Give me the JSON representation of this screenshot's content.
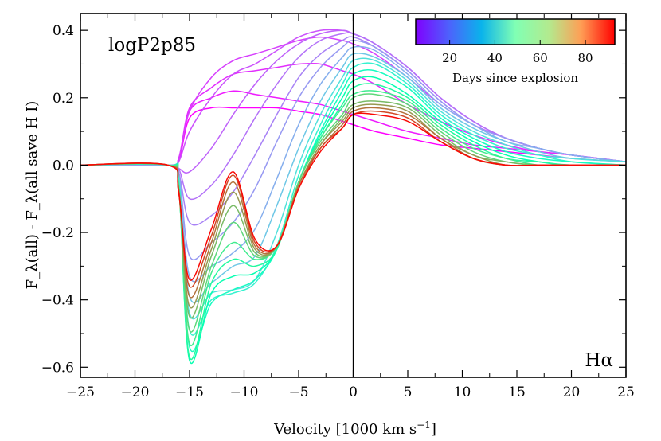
{
  "chart_data": {
    "type": "line",
    "title": "",
    "panel_label": "logP2p85",
    "line_label": "Hα",
    "xlabel": "Velocity [1000 km s",
    "xlabel_sup": "−1",
    "xlabel_close": "]",
    "ylabel": "F_λ(all) - F_λ(all save H I)",
    "xlim": [
      -25,
      25
    ],
    "ylim": [
      -0.63,
      0.45
    ],
    "x_ticks": [
      -25,
      -20,
      -15,
      -10,
      -5,
      0,
      5,
      10,
      15,
      20,
      25
    ],
    "x_tick_labels": [
      "−25",
      "−20",
      "−15",
      "−10",
      "−5",
      "0",
      "5",
      "10",
      "15",
      "20",
      "25"
    ],
    "y_ticks": [
      -0.6,
      -0.4,
      -0.2,
      0.0,
      0.2,
      0.4
    ],
    "y_tick_labels": [
      "−0.6",
      "−0.4",
      "−0.2",
      "0.0",
      "0.2",
      "0.4"
    ],
    "colorbar": {
      "label": "Days since explosion",
      "range": [
        5,
        93
      ],
      "ticks": [
        20,
        40,
        60,
        80
      ],
      "tick_labels": [
        "20",
        "40",
        "60",
        "80"
      ],
      "colormap": "rainbow"
    },
    "vertical_line_x": 0,
    "series": [
      {
        "name": "Day 5",
        "day": 5,
        "x": [
          -25,
          -17,
          -16,
          -15,
          -13,
          -11,
          -9,
          -7,
          -5,
          -3,
          -1,
          0,
          2,
          5,
          8,
          11,
          14,
          17,
          20,
          25
        ],
        "y": [
          0,
          0,
          0.01,
          0.14,
          0.17,
          0.17,
          0.17,
          0.17,
          0.16,
          0.15,
          0.13,
          0.12,
          0.1,
          0.08,
          0.06,
          0.05,
          0.04,
          0.03,
          0.02,
          0.01
        ]
      },
      {
        "name": "Day 8",
        "day": 8,
        "x": [
          -25,
          -17,
          -16,
          -15,
          -13,
          -11,
          -9,
          -7,
          -5,
          -3,
          -1,
          0,
          2,
          5,
          8,
          11,
          14,
          17,
          20,
          25
        ],
        "y": [
          0,
          0,
          0.01,
          0.16,
          0.2,
          0.22,
          0.21,
          0.2,
          0.19,
          0.18,
          0.16,
          0.15,
          0.13,
          0.1,
          0.08,
          0.06,
          0.05,
          0.04,
          0.03,
          0.01
        ]
      },
      {
        "name": "Day 10",
        "day": 10,
        "x": [
          -25,
          -17,
          -16,
          -15,
          -13,
          -11,
          -9,
          -7,
          -5,
          -3,
          -1,
          0,
          2,
          5,
          8,
          11,
          14,
          17,
          20,
          25
        ],
        "y": [
          0,
          0,
          0.02,
          0.17,
          0.23,
          0.27,
          0.28,
          0.29,
          0.3,
          0.3,
          0.28,
          0.27,
          0.24,
          0.18,
          0.13,
          0.09,
          0.06,
          0.04,
          0.03,
          0.01
        ]
      },
      {
        "name": "Day 12",
        "day": 12,
        "x": [
          -25,
          -17,
          -16,
          -15,
          -13,
          -11,
          -9,
          -7,
          -5,
          -3,
          -1,
          0,
          2,
          5,
          8,
          11,
          14,
          17,
          20,
          25
        ],
        "y": [
          0,
          0,
          0.02,
          0.16,
          0.26,
          0.31,
          0.33,
          0.35,
          0.37,
          0.38,
          0.37,
          0.36,
          0.33,
          0.26,
          0.18,
          0.12,
          0.08,
          0.05,
          0.03,
          0.01
        ]
      },
      {
        "name": "Day 14",
        "day": 14,
        "x": [
          -25,
          -17,
          -16,
          -15,
          -13,
          -11,
          -9,
          -7,
          -5,
          -3,
          -1,
          0,
          2,
          5,
          8,
          11,
          14,
          17,
          20,
          25
        ],
        "y": [
          0,
          0,
          0.01,
          0.1,
          0.2,
          0.27,
          0.3,
          0.34,
          0.38,
          0.4,
          0.4,
          0.39,
          0.36,
          0.29,
          0.2,
          0.13,
          0.08,
          0.05,
          0.03,
          0.01
        ]
      },
      {
        "name": "Day 16",
        "day": 16,
        "x": [
          -25,
          -17,
          -16,
          -15,
          -13,
          -11,
          -9,
          -7,
          -5,
          -3,
          -1,
          0,
          2,
          5,
          8,
          11,
          14,
          17,
          20,
          25
        ],
        "y": [
          0,
          0,
          -0.01,
          -0.02,
          0.05,
          0.15,
          0.24,
          0.31,
          0.36,
          0.39,
          0.4,
          0.39,
          0.36,
          0.29,
          0.2,
          0.13,
          0.08,
          0.05,
          0.03,
          0.01
        ]
      },
      {
        "name": "Day 18",
        "day": 18,
        "x": [
          -25,
          -17,
          -16,
          -15,
          -13,
          -11,
          -9,
          -7,
          -5,
          -3,
          -1,
          0,
          2,
          5,
          8,
          11,
          14,
          17,
          20,
          25
        ],
        "y": [
          0,
          0,
          -0.01,
          -0.1,
          -0.06,
          0.03,
          0.14,
          0.24,
          0.32,
          0.37,
          0.39,
          0.39,
          0.36,
          0.29,
          0.2,
          0.13,
          0.08,
          0.05,
          0.03,
          0.01
        ]
      },
      {
        "name": "Day 20",
        "day": 20,
        "x": [
          -25,
          -17,
          -16,
          -15,
          -13,
          -11,
          -9,
          -7,
          -5,
          -3,
          -1,
          0,
          2,
          5,
          8,
          11,
          14,
          17,
          20,
          25
        ],
        "y": [
          0,
          0,
          -0.02,
          -0.17,
          -0.15,
          -0.08,
          0.03,
          0.15,
          0.26,
          0.33,
          0.37,
          0.38,
          0.35,
          0.28,
          0.19,
          0.12,
          0.08,
          0.05,
          0.03,
          0.01
        ]
      },
      {
        "name": "Day 23",
        "day": 23,
        "x": [
          -25,
          -17,
          -16,
          -15,
          -13,
          -11,
          -9,
          -7,
          -5,
          -3,
          -1,
          0,
          2,
          5,
          8,
          11,
          14,
          17,
          20,
          25
        ],
        "y": [
          0,
          0,
          -0.02,
          -0.27,
          -0.23,
          -0.17,
          -0.07,
          0.07,
          0.2,
          0.29,
          0.35,
          0.37,
          0.35,
          0.28,
          0.19,
          0.12,
          0.08,
          0.05,
          0.03,
          0.01
        ]
      },
      {
        "name": "Day 26",
        "day": 26,
        "x": [
          -25,
          -17,
          -16,
          -15,
          -13,
          -11,
          -9,
          -7,
          -5,
          -3,
          -1,
          0,
          2,
          5,
          8,
          11,
          14,
          17,
          20,
          25
        ],
        "y": [
          0,
          0,
          -0.03,
          -0.33,
          -0.3,
          -0.26,
          -0.19,
          -0.04,
          0.12,
          0.24,
          0.32,
          0.35,
          0.34,
          0.27,
          0.18,
          0.12,
          0.07,
          0.05,
          0.03,
          0.01
        ]
      },
      {
        "name": "Day 30",
        "day": 30,
        "x": [
          -25,
          -17,
          -16,
          -15,
          -13,
          -11,
          -9,
          -7,
          -5,
          -3,
          -1,
          0,
          2,
          5,
          8,
          11,
          14,
          17,
          20,
          25
        ],
        "y": [
          0,
          0,
          -0.03,
          -0.39,
          -0.35,
          -0.3,
          -0.27,
          -0.12,
          0.05,
          0.19,
          0.29,
          0.33,
          0.32,
          0.26,
          0.17,
          0.11,
          0.07,
          0.04,
          0.02,
          0.01
        ]
      },
      {
        "name": "Day 35",
        "day": 35,
        "x": [
          -25,
          -17,
          -16,
          -15,
          -13,
          -11,
          -9,
          -7,
          -5,
          -3,
          -1,
          0,
          2,
          5,
          8,
          11,
          14,
          17,
          20,
          25
        ],
        "y": [
          0,
          0,
          -0.04,
          -0.44,
          -0.38,
          -0.37,
          -0.34,
          -0.2,
          0,
          0.15,
          0.26,
          0.31,
          0.31,
          0.25,
          0.16,
          0.1,
          0.06,
          0.03,
          0.02,
          0.01
        ]
      },
      {
        "name": "Day 40",
        "day": 40,
        "x": [
          -25,
          -17,
          -16,
          -15,
          -13,
          -11,
          -9,
          -7,
          -5,
          -3,
          -1,
          0,
          2,
          5,
          8,
          11,
          14,
          17,
          20,
          25
        ],
        "y": [
          0,
          0,
          -0.05,
          -0.49,
          -0.4,
          -0.38,
          -0.35,
          -0.24,
          -0.03,
          0.12,
          0.24,
          0.29,
          0.3,
          0.24,
          0.15,
          0.09,
          0.05,
          0.03,
          0.01,
          0
        ]
      },
      {
        "name": "Day 45",
        "day": 45,
        "x": [
          -25,
          -17,
          -16,
          -15,
          -13,
          -11,
          -9,
          -7,
          -5,
          -3,
          -1,
          0,
          2,
          5,
          8,
          11,
          14,
          17,
          20,
          25
        ],
        "y": [
          0,
          0,
          -0.05,
          -0.54,
          -0.41,
          -0.37,
          -0.34,
          -0.25,
          -0.05,
          0.1,
          0.22,
          0.27,
          0.28,
          0.23,
          0.14,
          0.08,
          0.04,
          0.02,
          0.01,
          0
        ]
      },
      {
        "name": "Day 50",
        "day": 50,
        "x": [
          -25,
          -17,
          -16,
          -15,
          -13,
          -11,
          -9,
          -7,
          -5,
          -3,
          -1,
          0,
          2,
          5,
          8,
          11,
          14,
          17,
          20,
          25
        ],
        "y": [
          0,
          0,
          -0.06,
          -0.58,
          -0.38,
          -0.33,
          -0.32,
          -0.25,
          -0.05,
          0.09,
          0.2,
          0.25,
          0.26,
          0.21,
          0.13,
          0.07,
          0.03,
          0.01,
          0,
          0
        ]
      },
      {
        "name": "Day 55",
        "day": 55,
        "x": [
          -25,
          -17,
          -16,
          -15,
          -13,
          -11,
          -9,
          -7,
          -5,
          -3,
          -1,
          0,
          2,
          5,
          8,
          11,
          14,
          17,
          20,
          25
        ],
        "y": [
          0,
          0,
          -0.06,
          -0.57,
          -0.35,
          -0.28,
          -0.3,
          -0.25,
          -0.05,
          0.08,
          0.18,
          0.23,
          0.24,
          0.2,
          0.12,
          0.06,
          0.02,
          0.01,
          0,
          0
        ]
      },
      {
        "name": "Day 60",
        "day": 60,
        "x": [
          -25,
          -17,
          -16,
          -15,
          -13,
          -11,
          -9,
          -7,
          -5,
          -3,
          -1,
          0,
          2,
          5,
          8,
          11,
          14,
          17,
          20,
          25
        ],
        "y": [
          0,
          0,
          -0.06,
          -0.53,
          -0.32,
          -0.23,
          -0.28,
          -0.24,
          -0.05,
          0.08,
          0.17,
          0.21,
          0.22,
          0.19,
          0.11,
          0.05,
          0.02,
          0,
          0,
          0
        ]
      },
      {
        "name": "Day 65",
        "day": 65,
        "x": [
          -25,
          -17,
          -16,
          -15,
          -13,
          -11,
          -9,
          -7,
          -5,
          -3,
          -1,
          0,
          2,
          5,
          8,
          11,
          14,
          17,
          20,
          25
        ],
        "y": [
          0,
          0,
          -0.07,
          -0.49,
          -0.3,
          -0.17,
          -0.27,
          -0.24,
          -0.05,
          0.07,
          0.15,
          0.2,
          0.21,
          0.18,
          0.1,
          0.04,
          0.01,
          0,
          0,
          0
        ]
      },
      {
        "name": "Day 70",
        "day": 70,
        "x": [
          -25,
          -17,
          -16,
          -15,
          -13,
          -11,
          -9,
          -7,
          -5,
          -3,
          -1,
          0,
          2,
          5,
          8,
          11,
          14,
          17,
          20,
          25
        ],
        "y": [
          0,
          0,
          -0.07,
          -0.45,
          -0.27,
          -0.12,
          -0.26,
          -0.24,
          -0.06,
          0.06,
          0.14,
          0.18,
          0.19,
          0.17,
          0.09,
          0.03,
          0.01,
          0,
          0,
          0
        ]
      },
      {
        "name": "Day 75",
        "day": 75,
        "x": [
          -25,
          -17,
          -16,
          -15,
          -13,
          -11,
          -9,
          -7,
          -5,
          -3,
          -1,
          0,
          2,
          5,
          8,
          11,
          14,
          17,
          20,
          25
        ],
        "y": [
          0,
          0,
          -0.07,
          -0.42,
          -0.25,
          -0.08,
          -0.25,
          -0.24,
          -0.06,
          0.06,
          0.13,
          0.17,
          0.18,
          0.16,
          0.08,
          0.03,
          0,
          0,
          0,
          0
        ]
      },
      {
        "name": "Day 80",
        "day": 80,
        "x": [
          -25,
          -17,
          -16,
          -15,
          -13,
          -11,
          -9,
          -7,
          -5,
          -3,
          -1,
          0,
          2,
          5,
          8,
          11,
          14,
          17,
          20,
          25
        ],
        "y": [
          0,
          0,
          -0.07,
          -0.39,
          -0.23,
          -0.05,
          -0.24,
          -0.24,
          -0.06,
          0.05,
          0.12,
          0.16,
          0.17,
          0.15,
          0.08,
          0.02,
          0,
          0,
          0,
          0
        ]
      },
      {
        "name": "Day 85",
        "day": 85,
        "x": [
          -25,
          -17,
          -16,
          -15,
          -13,
          -11,
          -9,
          -7,
          -5,
          -3,
          -1,
          0,
          2,
          5,
          8,
          11,
          14,
          17,
          20,
          25
        ],
        "y": [
          0,
          0,
          -0.08,
          -0.36,
          -0.21,
          -0.03,
          -0.23,
          -0.24,
          -0.07,
          0.05,
          0.11,
          0.15,
          0.16,
          0.14,
          0.07,
          0.02,
          0,
          0,
          0,
          0
        ]
      },
      {
        "name": "Day 92",
        "day": 92,
        "x": [
          -25,
          -17,
          -16,
          -15,
          -13,
          -11,
          -9,
          -7,
          -5,
          -3,
          -1,
          0,
          2,
          5,
          8,
          11,
          14,
          17,
          20,
          25
        ],
        "y": [
          0,
          0,
          -0.08,
          -0.34,
          -0.19,
          -0.02,
          -0.22,
          -0.24,
          -0.07,
          0.04,
          0.11,
          0.15,
          0.15,
          0.13,
          0.07,
          0.02,
          0,
          0,
          0,
          0
        ]
      }
    ]
  }
}
